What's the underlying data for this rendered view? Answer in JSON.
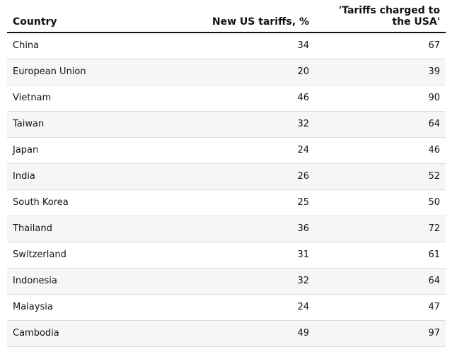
{
  "chart_data": {
    "type": "table",
    "columns": [
      "Country",
      "New US tariffs, %",
      "'Tariffs charged to the USA'"
    ],
    "rows": [
      {
        "country": "China",
        "new_us_tariffs": 34,
        "tariffs_charged_to_usa": 67
      },
      {
        "country": "European Union",
        "new_us_tariffs": 20,
        "tariffs_charged_to_usa": 39
      },
      {
        "country": "Vietnam",
        "new_us_tariffs": 46,
        "tariffs_charged_to_usa": 90
      },
      {
        "country": "Taiwan",
        "new_us_tariffs": 32,
        "tariffs_charged_to_usa": 64
      },
      {
        "country": "Japan",
        "new_us_tariffs": 24,
        "tariffs_charged_to_usa": 46
      },
      {
        "country": "India",
        "new_us_tariffs": 26,
        "tariffs_charged_to_usa": 52
      },
      {
        "country": "South Korea",
        "new_us_tariffs": 25,
        "tariffs_charged_to_usa": 50
      },
      {
        "country": "Thailand",
        "new_us_tariffs": 36,
        "tariffs_charged_to_usa": 72
      },
      {
        "country": "Switzerland",
        "new_us_tariffs": 31,
        "tariffs_charged_to_usa": 61
      },
      {
        "country": "Indonesia",
        "new_us_tariffs": 32,
        "tariffs_charged_to_usa": 64
      },
      {
        "country": "Malaysia",
        "new_us_tariffs": 24,
        "tariffs_charged_to_usa": 47
      },
      {
        "country": "Cambodia",
        "new_us_tariffs": 49,
        "tariffs_charged_to_usa": 97
      }
    ]
  }
}
